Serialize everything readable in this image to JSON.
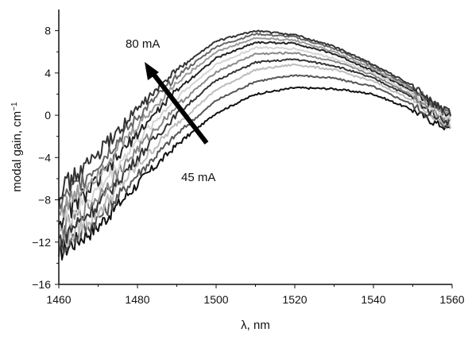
{
  "chart_data": {
    "type": "line",
    "xlabel": "λ, nm",
    "ylabel": "modal gain, cm",
    "ylabel_superscript": "−1",
    "xlim": [
      1460,
      1560
    ],
    "ylim": [
      -16,
      10
    ],
    "xticks": [
      1460,
      1480,
      1500,
      1520,
      1540,
      1560
    ],
    "yticks": [
      -16,
      -12,
      -8,
      -4,
      0,
      4,
      8
    ],
    "grid": false,
    "annotations": {
      "top_label": "80 mA",
      "bottom_label": "45 mA"
    },
    "series": [
      {
        "color": "#111111",
        "values": [
          [
            1460,
            -13.0
          ],
          [
            1470,
            -10.5
          ],
          [
            1480,
            -6.5
          ],
          [
            1490,
            -2.8
          ],
          [
            1500,
            0.2
          ],
          [
            1510,
            2.0
          ],
          [
            1520,
            2.6
          ],
          [
            1530,
            2.5
          ],
          [
            1540,
            2.0
          ],
          [
            1550,
            0.5
          ],
          [
            1555,
            -0.6
          ],
          [
            1560,
            -1.4
          ]
        ]
      },
      {
        "color": "#555555",
        "values": [
          [
            1460,
            -12.6
          ],
          [
            1470,
            -9.8
          ],
          [
            1480,
            -5.6
          ],
          [
            1490,
            -1.8
          ],
          [
            1500,
            1.4
          ],
          [
            1510,
            3.2
          ],
          [
            1520,
            3.8
          ],
          [
            1530,
            3.5
          ],
          [
            1540,
            2.7
          ],
          [
            1550,
            1.0
          ],
          [
            1555,
            -0.3
          ],
          [
            1560,
            -1.2
          ]
        ]
      },
      {
        "color": "#bcbcbc",
        "values": [
          [
            1460,
            -12.2
          ],
          [
            1470,
            -9.1
          ],
          [
            1480,
            -4.8
          ],
          [
            1490,
            -0.8
          ],
          [
            1500,
            2.4
          ],
          [
            1510,
            4.3
          ],
          [
            1520,
            4.8
          ],
          [
            1530,
            4.3
          ],
          [
            1540,
            3.2
          ],
          [
            1550,
            1.4
          ],
          [
            1555,
            -0.1
          ],
          [
            1560,
            -1.0
          ]
        ]
      },
      {
        "color": "#333333",
        "values": [
          [
            1460,
            -11.8
          ],
          [
            1470,
            -8.4
          ],
          [
            1480,
            -4.0
          ],
          [
            1490,
            0.1
          ],
          [
            1500,
            3.3
          ],
          [
            1510,
            5.0
          ],
          [
            1520,
            5.3
          ],
          [
            1530,
            4.7
          ],
          [
            1540,
            3.5
          ],
          [
            1550,
            1.7
          ],
          [
            1555,
            0.2
          ],
          [
            1560,
            -0.8
          ]
        ]
      },
      {
        "color": "#888888",
        "values": [
          [
            1460,
            -11.2
          ],
          [
            1470,
            -7.7
          ],
          [
            1480,
            -3.2
          ],
          [
            1490,
            0.9
          ],
          [
            1500,
            4.1
          ],
          [
            1510,
            5.8
          ],
          [
            1520,
            5.9
          ],
          [
            1530,
            5.1
          ],
          [
            1540,
            3.8
          ],
          [
            1550,
            1.9
          ],
          [
            1555,
            0.5
          ],
          [
            1560,
            -0.5
          ]
        ]
      },
      {
        "color": "#d4d4d4",
        "values": [
          [
            1460,
            -10.6
          ],
          [
            1470,
            -7.0
          ],
          [
            1480,
            -2.4
          ],
          [
            1490,
            1.7
          ],
          [
            1500,
            4.8
          ],
          [
            1510,
            6.4
          ],
          [
            1520,
            6.3
          ],
          [
            1530,
            5.4
          ],
          [
            1540,
            4.0
          ],
          [
            1550,
            2.1
          ],
          [
            1555,
            0.7
          ],
          [
            1560,
            -0.4
          ]
        ]
      },
      {
        "color": "#222222",
        "values": [
          [
            1460,
            -10.0
          ],
          [
            1470,
            -6.2
          ],
          [
            1480,
            -1.7
          ],
          [
            1490,
            2.4
          ],
          [
            1500,
            5.4
          ],
          [
            1510,
            6.9
          ],
          [
            1520,
            6.8
          ],
          [
            1530,
            5.8
          ],
          [
            1540,
            4.2
          ],
          [
            1550,
            2.3
          ],
          [
            1555,
            0.9
          ],
          [
            1560,
            -0.2
          ]
        ]
      },
      {
        "color": "#9a9a9a",
        "values": [
          [
            1460,
            -9.2
          ],
          [
            1470,
            -5.4
          ],
          [
            1480,
            -1.0
          ],
          [
            1490,
            3.1
          ],
          [
            1500,
            6.0
          ],
          [
            1510,
            7.3
          ],
          [
            1520,
            7.1
          ],
          [
            1530,
            6.0
          ],
          [
            1540,
            4.4
          ],
          [
            1550,
            2.4
          ],
          [
            1555,
            1.0
          ],
          [
            1560,
            -0.1
          ]
        ]
      },
      {
        "color": "#666666",
        "values": [
          [
            1460,
            -8.4
          ],
          [
            1470,
            -4.6
          ],
          [
            1480,
            -0.2
          ],
          [
            1490,
            3.7
          ],
          [
            1500,
            6.5
          ],
          [
            1510,
            7.7
          ],
          [
            1520,
            7.4
          ],
          [
            1530,
            6.3
          ],
          [
            1540,
            4.6
          ],
          [
            1550,
            2.6
          ],
          [
            1555,
            1.1
          ],
          [
            1560,
            0.0
          ]
        ]
      },
      {
        "color": "#333333",
        "values": [
          [
            1460,
            -7.2
          ],
          [
            1470,
            -3.7
          ],
          [
            1480,
            0.6
          ],
          [
            1490,
            4.3
          ],
          [
            1500,
            7.0
          ],
          [
            1510,
            8.0
          ],
          [
            1520,
            7.6
          ],
          [
            1530,
            6.5
          ],
          [
            1540,
            4.8
          ],
          [
            1550,
            2.8
          ],
          [
            1555,
            1.2
          ],
          [
            1560,
            0.1
          ]
        ]
      }
    ]
  }
}
